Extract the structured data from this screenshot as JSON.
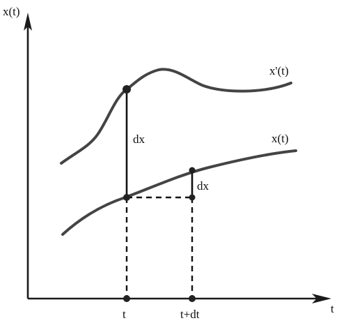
{
  "axes": {
    "y_label": "x(t)",
    "x_label": "t"
  },
  "curves": [
    {
      "label": "x'(t)"
    },
    {
      "label": "x(t)"
    }
  ],
  "segments": {
    "large": "dx",
    "small": "dx"
  },
  "ticks": [
    "t",
    "t+dt"
  ]
}
